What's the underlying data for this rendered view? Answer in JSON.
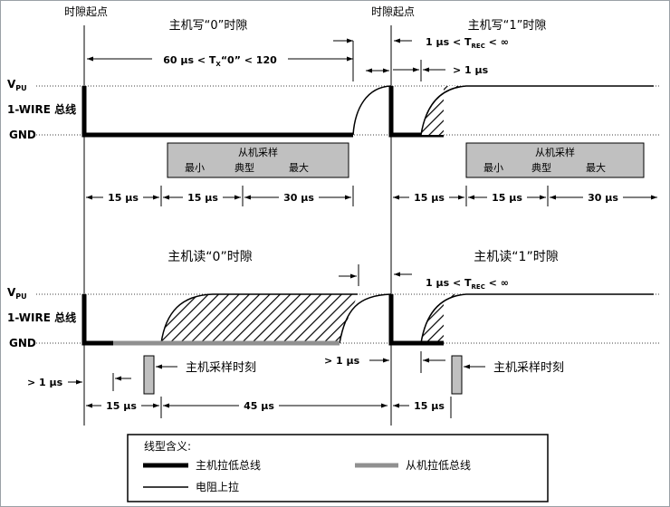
{
  "slot_start_label_1": "时隙起点",
  "slot_start_label_2": "时隙起点",
  "write0": {
    "title": "主机写“0”时隙",
    "tx_range": "60 μs < T",
    "tx_sub": "X",
    "tx_tail": "“0” < 120"
  },
  "write1": {
    "title": "主机写“1”时隙",
    "trec_pre": "1 μs < T",
    "trec_sub": "REC",
    "trec_tail": " < ∞",
    "gt1": "> 1 μs"
  },
  "read0": {
    "title": "主机读“0”时隙"
  },
  "read1": {
    "title": "主机读“1”时隙",
    "trec_pre": "1 μs < T",
    "trec_sub": "REC",
    "trec_tail": " < ∞"
  },
  "levels": {
    "vpu": "V",
    "vpu_sub": "PU",
    "wire": "1-WIRE 总线",
    "gnd": "GND"
  },
  "slave_sample": {
    "title": "从机采样",
    "min": "最小",
    "typ": "典型",
    "max": "最大"
  },
  "timing": {
    "t15": "15 μs",
    "t30": "30 μs",
    "t45": "45 μs",
    "gt1": "> 1 μs"
  },
  "master_sample_label": "主机采样时刻",
  "legend": {
    "title": "线型含义:",
    "master": "主机拉低总线",
    "slave": "从机拉低总线",
    "pullup": "电阻上拉"
  },
  "colors": {
    "sample_box": "#c0c0c0",
    "slave_line": "#909090"
  }
}
